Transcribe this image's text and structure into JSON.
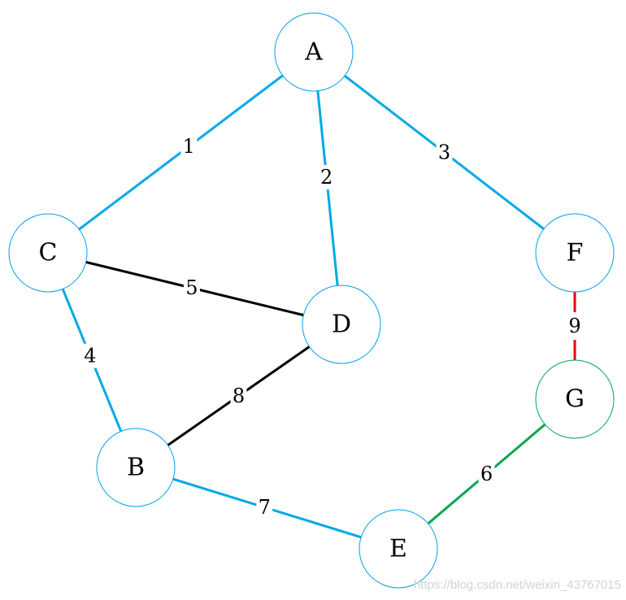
{
  "graph": {
    "nodes": [
      {
        "id": "A",
        "label": "A",
        "color": "#00a0e9"
      },
      {
        "id": "C",
        "label": "C",
        "color": "#00a0e9"
      },
      {
        "id": "D",
        "label": "D",
        "color": "#00a0e9"
      },
      {
        "id": "F",
        "label": "F",
        "color": "#00a0e9"
      },
      {
        "id": "G",
        "label": "G",
        "color": "#00a651"
      },
      {
        "id": "B",
        "label": "B",
        "color": "#00a0e9"
      },
      {
        "id": "E",
        "label": "E",
        "color": "#00a0e9"
      }
    ],
    "edges": [
      {
        "from": "A",
        "to": "C",
        "weight": "1",
        "color": "#00a9e7"
      },
      {
        "from": "A",
        "to": "D",
        "weight": "2",
        "color": "#00a9e7"
      },
      {
        "from": "A",
        "to": "F",
        "weight": "3",
        "color": "#00a9e7"
      },
      {
        "from": "C",
        "to": "B",
        "weight": "4",
        "color": "#00a9e7"
      },
      {
        "from": "C",
        "to": "D",
        "weight": "5",
        "color": "#000000"
      },
      {
        "from": "E",
        "to": "G",
        "weight": "6",
        "color": "#00a651"
      },
      {
        "from": "B",
        "to": "E",
        "weight": "7",
        "color": "#00a9e7"
      },
      {
        "from": "D",
        "to": "B",
        "weight": "8",
        "color": "#000000"
      },
      {
        "from": "F",
        "to": "G",
        "weight": "9",
        "color": "#e60012"
      }
    ]
  },
  "watermark": "https://blog.csdn.net/weixin_43767015"
}
